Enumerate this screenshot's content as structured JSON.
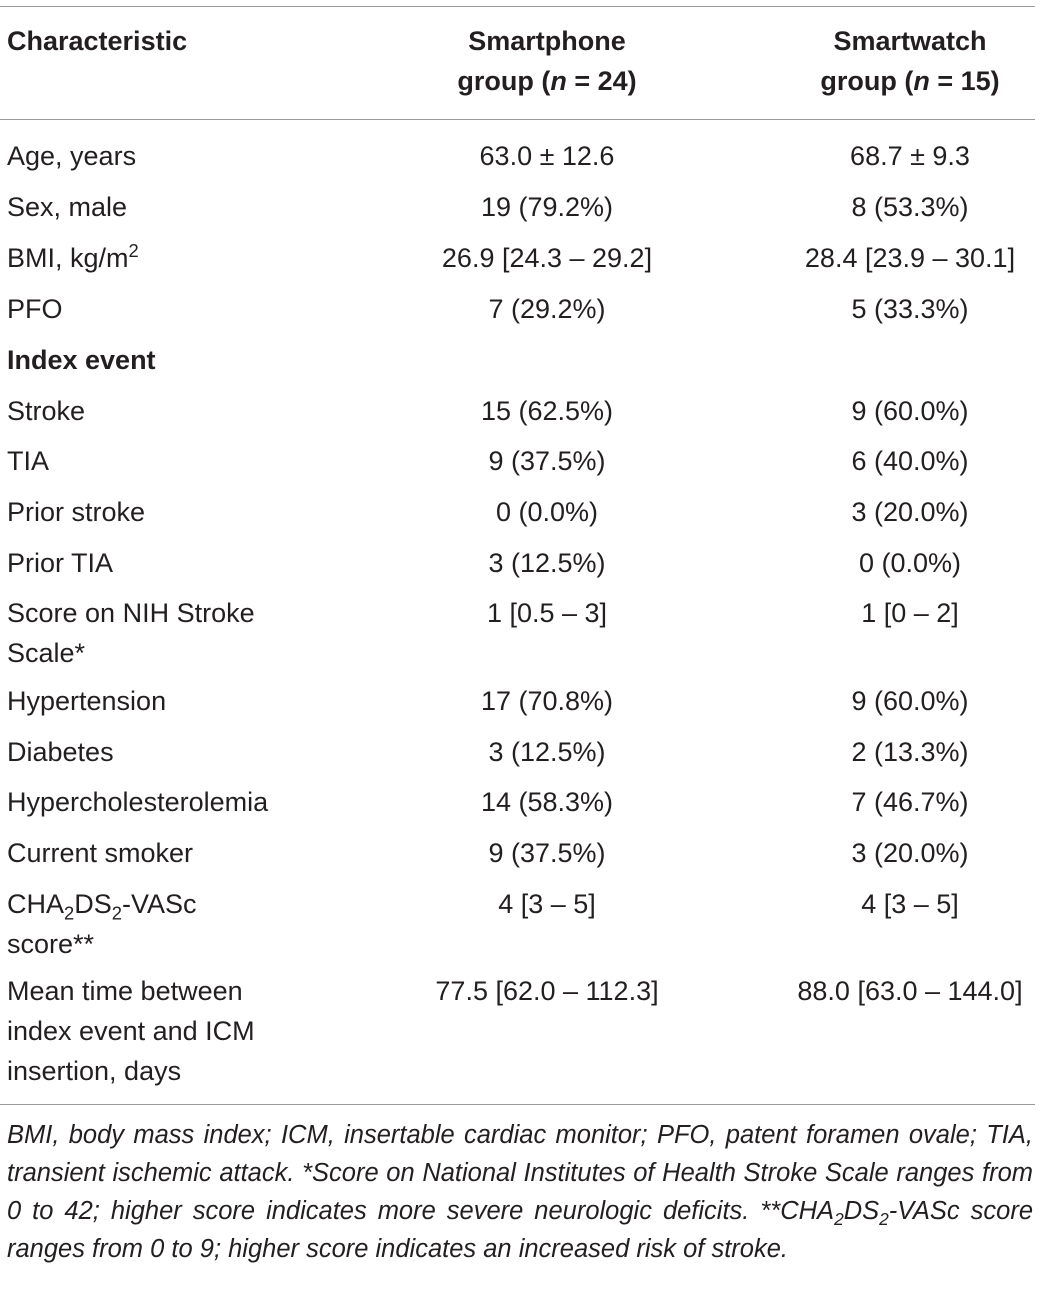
{
  "table": {
    "headers": {
      "characteristic": "Characteristic",
      "smartphone_line1": "Smartphone",
      "smartphone_line2_pre": "group (",
      "smartphone_n": "n",
      "smartphone_line2_post": " = 24)",
      "smartwatch_line1": "Smartwatch",
      "smartwatch_line2_pre": "group (",
      "smartwatch_n": "n",
      "smartwatch_line2_post": " = 15)"
    },
    "rows": [
      {
        "label": "Age, years",
        "smartphone": "63.0 ± 12.6",
        "smartwatch": "68.7 ± 9.3"
      },
      {
        "label": "Sex, male",
        "smartphone": "19 (79.2%)",
        "smartwatch": "8 (53.3%)"
      },
      {
        "label_pre": "BMI, kg/m",
        "label_sup": "2",
        "smartphone": "26.9 [24.3 – 29.2]",
        "smartwatch": "28.4 [23.9 – 30.1]"
      },
      {
        "label": "PFO",
        "smartphone": "7 (29.2%)",
        "smartwatch": "5 (33.3%)"
      },
      {
        "label": "Index event",
        "smartphone": "",
        "smartwatch": ""
      },
      {
        "label": "Stroke",
        "smartphone": "15 (62.5%)",
        "smartwatch": "9 (60.0%)"
      },
      {
        "label": "TIA",
        "smartphone": "9 (37.5%)",
        "smartwatch": "6 (40.0%)"
      },
      {
        "label": "Prior stroke",
        "smartphone": "0 (0.0%)",
        "smartwatch": "3 (20.0%)"
      },
      {
        "label": "Prior TIA",
        "smartphone": "3 (12.5%)",
        "smartwatch": "0 (0.0%)"
      },
      {
        "label_line1": "Score on NIH Stroke",
        "label_line2": "Scale*",
        "smartphone": "1 [0.5 – 3]",
        "smartwatch": "1 [0 – 2]"
      },
      {
        "label": "Hypertension",
        "smartphone": "17 (70.8%)",
        "smartwatch": "9 (60.0%)"
      },
      {
        "label": "Diabetes",
        "smartphone": "3 (12.5%)",
        "smartwatch": "2 (13.3%)"
      },
      {
        "label": "Hypercholesterolemia",
        "smartphone": "14 (58.3%)",
        "smartwatch": "7 (46.7%)"
      },
      {
        "label": "Current smoker",
        "smartphone": "9 (37.5%)",
        "smartwatch": "3 (20.0%)"
      },
      {
        "label_a": "CHA",
        "label_sub1": "2",
        "label_b": "DS",
        "label_sub2": "2",
        "label_c": "-VASc",
        "label_line2": "score**",
        "smartphone": "4 [3 – 5]",
        "smartwatch": "4 [3 – 5]"
      },
      {
        "label_line1": "Mean time between",
        "label_line2": "index event and ICM",
        "label_line3": "insertion, days",
        "smartphone": "77.5 [62.0 – 112.3]",
        "smartwatch": "88.0 [63.0 – 144.0]"
      }
    ]
  },
  "footnote": {
    "text_a": "BMI, body mass index; ICM, insertable cardiac monitor; PFO, patent foramen ovale; TIA, transient ischemic attack. *Score on National Institutes of Health Stroke Scale ranges from 0 to 42; higher score indicates more severe neurologic deficits. **CHA",
    "sub1": "2",
    "text_b": "DS",
    "sub2": "2",
    "text_c": "-VASc score ranges from 0 to 9; higher score indicates an increased risk of stroke."
  }
}
